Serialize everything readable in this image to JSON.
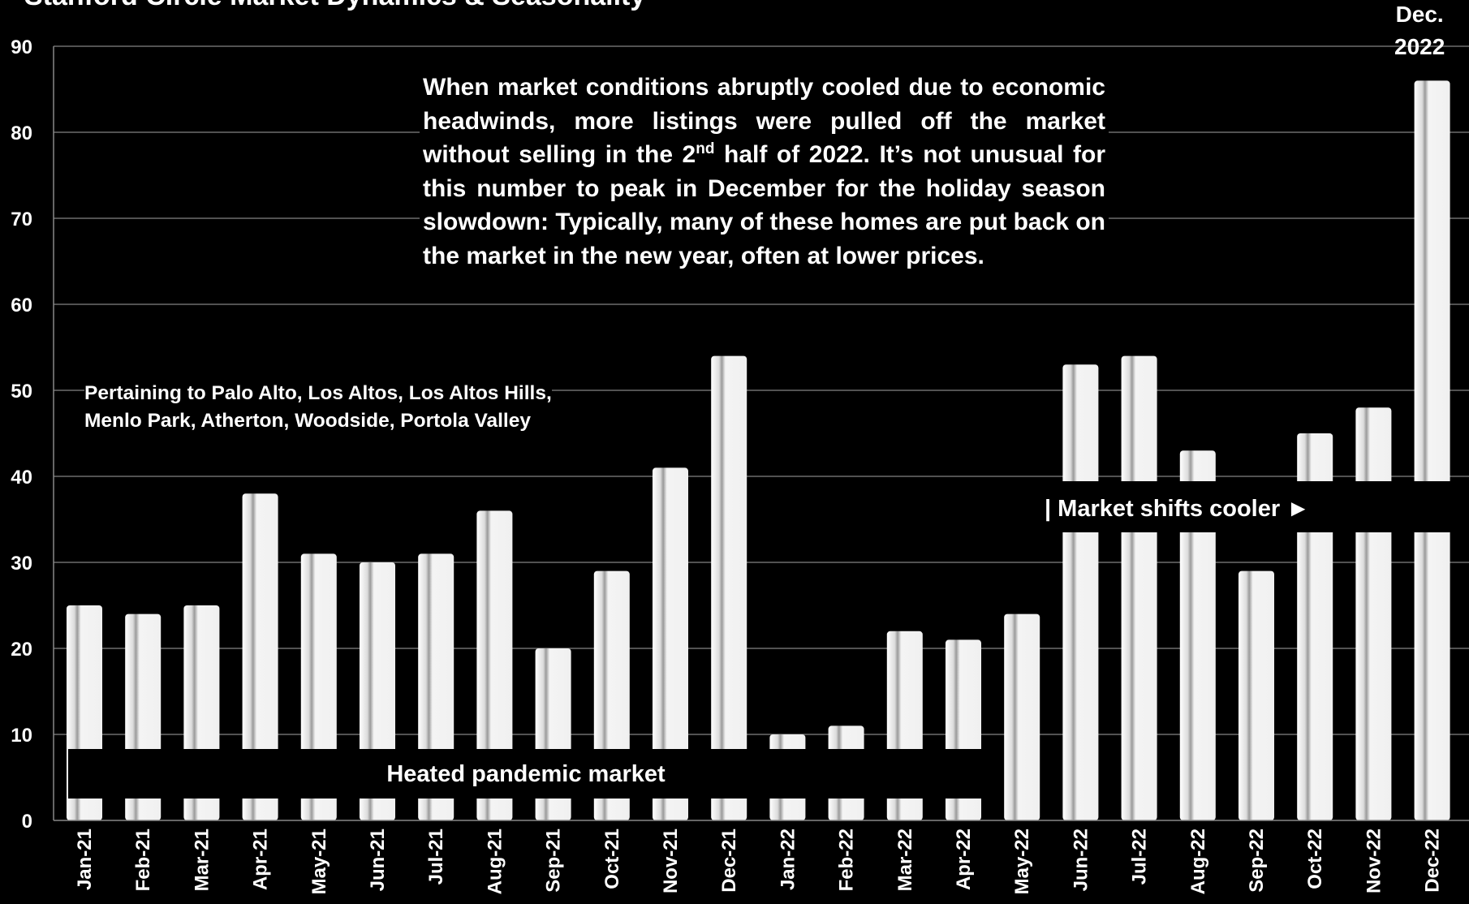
{
  "title": "Stanford Circle Market Dynamics & Seasonality",
  "chart_data": {
    "type": "bar",
    "categories": [
      "Jan-21",
      "Feb-21",
      "Mar-21",
      "Apr-21",
      "May-21",
      "Jun-21",
      "Jul-21",
      "Aug-21",
      "Sep-21",
      "Oct-21",
      "Nov-21",
      "Dec-21",
      "Jan-22",
      "Feb-22",
      "Mar-22",
      "Apr-22",
      "May-22",
      "Jun-22",
      "Jul-22",
      "Aug-22",
      "Sep-22",
      "Oct-22",
      "Nov-22",
      "Dec-22"
    ],
    "values": [
      25,
      24,
      25,
      38,
      31,
      30,
      31,
      36,
      20,
      29,
      41,
      54,
      10,
      11,
      22,
      21,
      24,
      53,
      54,
      43,
      29,
      45,
      48,
      86
    ],
    "ylim": [
      0,
      90
    ],
    "yticks": [
      0,
      10,
      20,
      30,
      40,
      50,
      60,
      70,
      80,
      90
    ],
    "grid": true,
    "bar_color": "#f2f2f2"
  },
  "annotations": {
    "main_note_1": "When market conditions abruptly cooled due to economic headwinds, more listings were pulled off the market without selling in the 2",
    "main_note_sup": "nd",
    "main_note_2": " half of 2022. It’s not unusual for this number to peak in December for the holiday season slowdown:  Typically, many of these homes are put back on the market in the new year, often at lower prices.",
    "region_line1": "Pertaining to Palo Alto, Los Altos, Los Altos Hills,",
    "region_line2": "Menlo Park, Atherton, Woodside, Portola Valley",
    "heated_band": "Heated pandemic market",
    "cooler_band": "| Market shifts cooler ►",
    "dec_line1": "Dec.",
    "dec_line2": "2022"
  }
}
